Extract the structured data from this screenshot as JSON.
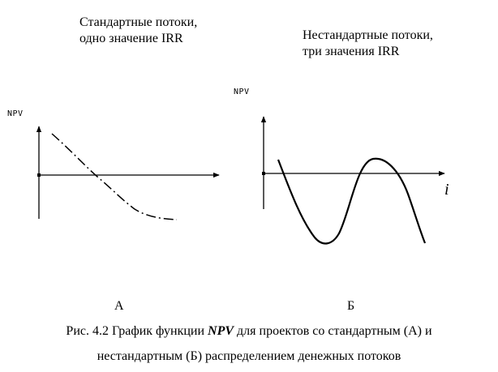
{
  "panel_a": {
    "title_line1": "Стандартные потоки,",
    "title_line2": "одно значение IRR",
    "y_axis_label": "NPV",
    "letter": "А"
  },
  "panel_b": {
    "title_line1": "Нестандартные потоки,",
    "title_line2": "три значения IRR",
    "y_axis_label": "NPV",
    "x_axis_label": "i",
    "letter": "Б"
  },
  "caption": {
    "line1_prefix": "Рис. 4.2 График функции ",
    "line1_term": "NPV",
    "line1_suffix": " для проектов со стандартным (А) и",
    "line2": "нестандартным (Б) распределением денежных потоков"
  }
}
